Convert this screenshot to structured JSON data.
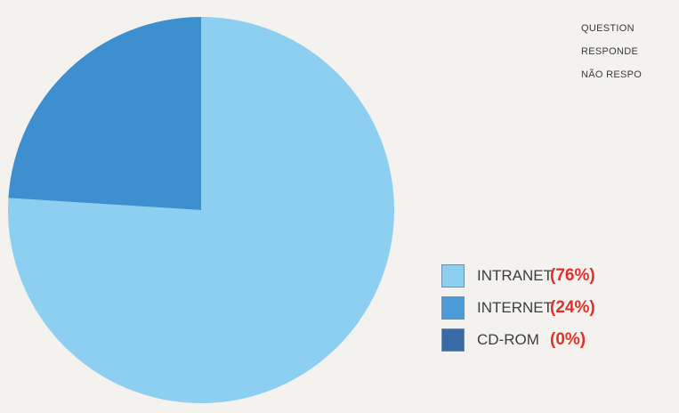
{
  "colors": {
    "background": "#f4f2ef",
    "intranet": "#8ccff0",
    "internet": "#3e8fd0",
    "cdrom": "#3a6aa6",
    "percent_text": "#e12f2a"
  },
  "notes": [
    "QUESTION",
    "RESPONDE",
    "NÃO RESPO"
  ],
  "chart_data": {
    "type": "pie",
    "title": "",
    "categories": [
      "INTRANET",
      "INTERNET",
      "CD-ROM"
    ],
    "values": [
      76,
      24,
      0
    ],
    "start_angle_deg": 0,
    "legend_position": "right",
    "legend": [
      {
        "label": "INTRANET",
        "percent_label": "(76%)",
        "swatch_color": "#8ccff0"
      },
      {
        "label": "INTERNET",
        "percent_label": "(24%)",
        "swatch_color": "#4d9bd8"
      },
      {
        "label": "CD-ROM",
        "percent_label": "(0%)",
        "swatch_color": "#3a6aa6"
      }
    ]
  }
}
